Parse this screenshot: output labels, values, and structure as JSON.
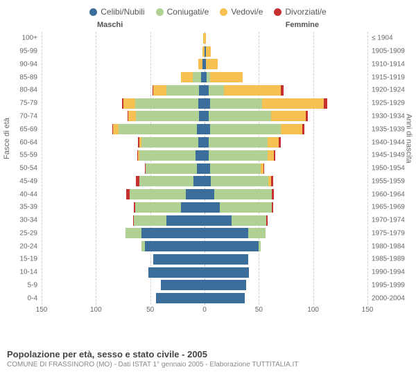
{
  "legend": [
    {
      "label": "Celibi/Nubili",
      "color": "#3b6e9a"
    },
    {
      "label": "Coniugati/e",
      "color": "#b1d194"
    },
    {
      "label": "Vedovi/e",
      "color": "#f6c152"
    },
    {
      "label": "Divorziati/e",
      "color": "#c73030"
    }
  ],
  "header_male": "Maschi",
  "header_female": "Femmine",
  "y_left_title": "Fasce di età",
  "y_right_title": "Anni di nascita",
  "x": {
    "max": 150,
    "ticks": [
      150,
      100,
      50,
      0,
      50,
      100,
      150
    ]
  },
  "colors": {
    "celibi": "#3b6e9a",
    "coniugati": "#b1d194",
    "vedovi": "#f6c152",
    "divorziati": "#c73030",
    "grid": "#d0d0d0",
    "grid_center": "#bbbbbb",
    "text": "#666666",
    "background": "#ffffff"
  },
  "footer": {
    "title": "Popolazione per età, sesso e stato civile - 2005",
    "subtitle": "COMUNE DI FRASSINORO (MO) - Dati ISTAT 1° gennaio 2005 - Elaborazione TUTTITALIA.IT"
  },
  "rows": [
    {
      "age": "100+",
      "birth": "≤ 1904",
      "m": [
        0,
        0,
        1,
        0
      ],
      "f": [
        0,
        0,
        1,
        0
      ]
    },
    {
      "age": "95-99",
      "birth": "1905-1909",
      "m": [
        0,
        0,
        2,
        0
      ],
      "f": [
        1,
        0,
        5,
        0
      ]
    },
    {
      "age": "90-94",
      "birth": "1910-1914",
      "m": [
        2,
        0,
        4,
        0
      ],
      "f": [
        1,
        0,
        11,
        0
      ]
    },
    {
      "age": "85-89",
      "birth": "1915-1919",
      "m": [
        3,
        8,
        11,
        0
      ],
      "f": [
        2,
        3,
        30,
        0
      ]
    },
    {
      "age": "80-84",
      "birth": "1920-1924",
      "m": [
        5,
        30,
        12,
        1
      ],
      "f": [
        4,
        14,
        52,
        3
      ]
    },
    {
      "age": "75-79",
      "birth": "1925-1929",
      "m": [
        6,
        58,
        11,
        1
      ],
      "f": [
        5,
        48,
        57,
        3
      ]
    },
    {
      "age": "70-74",
      "birth": "1930-1934",
      "m": [
        5,
        58,
        7,
        1
      ],
      "f": [
        4,
        57,
        32,
        2
      ]
    },
    {
      "age": "65-69",
      "birth": "1935-1939",
      "m": [
        7,
        72,
        5,
        1
      ],
      "f": [
        5,
        65,
        20,
        2
      ]
    },
    {
      "age": "60-64",
      "birth": "1940-1944",
      "m": [
        6,
        52,
        2,
        1
      ],
      "f": [
        4,
        54,
        10,
        2
      ]
    },
    {
      "age": "55-59",
      "birth": "1945-1949",
      "m": [
        8,
        52,
        1,
        1
      ],
      "f": [
        4,
        54,
        6,
        1
      ]
    },
    {
      "age": "50-54",
      "birth": "1950-1954",
      "m": [
        7,
        47,
        0,
        1
      ],
      "f": [
        5,
        47,
        2,
        1
      ]
    },
    {
      "age": "45-49",
      "birth": "1955-1959",
      "m": [
        10,
        50,
        0,
        3
      ],
      "f": [
        6,
        53,
        2,
        2
      ]
    },
    {
      "age": "40-44",
      "birth": "1960-1964",
      "m": [
        17,
        52,
        0,
        3
      ],
      "f": [
        9,
        53,
        0,
        2
      ]
    },
    {
      "age": "35-39",
      "birth": "1965-1969",
      "m": [
        22,
        42,
        0,
        1
      ],
      "f": [
        14,
        48,
        0,
        1
      ]
    },
    {
      "age": "30-34",
      "birth": "1970-1974",
      "m": [
        35,
        30,
        0,
        1
      ],
      "f": [
        25,
        32,
        0,
        1
      ]
    },
    {
      "age": "25-29",
      "birth": "1975-1979",
      "m": [
        58,
        15,
        0,
        0
      ],
      "f": [
        40,
        16,
        0,
        0
      ]
    },
    {
      "age": "20-24",
      "birth": "1980-1984",
      "m": [
        55,
        3,
        0,
        0
      ],
      "f": [
        50,
        2,
        0,
        0
      ]
    },
    {
      "age": "15-19",
      "birth": "1985-1989",
      "m": [
        47,
        0,
        0,
        0
      ],
      "f": [
        40,
        0,
        0,
        0
      ]
    },
    {
      "age": "10-14",
      "birth": "1990-1994",
      "m": [
        52,
        0,
        0,
        0
      ],
      "f": [
        41,
        0,
        0,
        0
      ]
    },
    {
      "age": "5-9",
      "birth": "1995-1999",
      "m": [
        40,
        0,
        0,
        0
      ],
      "f": [
        38,
        0,
        0,
        0
      ]
    },
    {
      "age": "0-4",
      "birth": "2000-2004",
      "m": [
        45,
        0,
        0,
        0
      ],
      "f": [
        37,
        0,
        0,
        0
      ]
    }
  ]
}
